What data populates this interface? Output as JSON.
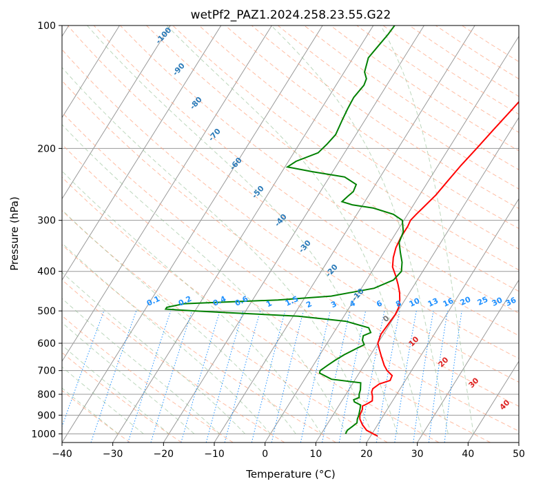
{
  "chart_data": {
    "type": "skew-t log-p sounding",
    "title": "wetPf2_PAZ1.2024.258.23.55.G22",
    "xlabel": "Temperature (°C)",
    "ylabel": "Pressure (hPa)",
    "xlim": [
      -40,
      50
    ],
    "ylim": [
      1050,
      100
    ],
    "x_ticks": [
      -40,
      -30,
      -20,
      -10,
      0,
      10,
      20,
      30,
      40,
      50
    ],
    "y_ticks": [
      1000,
      900,
      800,
      700,
      600,
      500,
      400,
      300,
      200,
      100
    ],
    "grid": true,
    "series": [
      {
        "color": "#ff0000",
        "points": [
          [
            1013,
            21.4
          ],
          [
            980,
            18.5
          ],
          [
            950,
            17.0
          ],
          [
            920,
            15.8
          ],
          [
            900,
            15.3
          ],
          [
            870,
            15.1
          ],
          [
            855,
            14.7
          ],
          [
            845,
            15.3
          ],
          [
            830,
            16.0
          ],
          [
            810,
            15.5
          ],
          [
            790,
            14.8
          ],
          [
            775,
            14.6
          ],
          [
            755,
            15.3
          ],
          [
            740,
            17.0
          ],
          [
            720,
            16.8
          ],
          [
            700,
            15.2
          ],
          [
            680,
            14.0
          ],
          [
            650,
            12.5
          ],
          [
            620,
            11.0
          ],
          [
            600,
            10.0
          ],
          [
            570,
            9.5
          ],
          [
            540,
            9.7
          ],
          [
            510,
            9.9
          ],
          [
            490,
            9.7
          ],
          [
            470,
            9.0
          ],
          [
            450,
            8.0
          ],
          [
            430,
            6.7
          ],
          [
            410,
            5.2
          ],
          [
            390,
            3.5
          ],
          [
            370,
            2.5
          ],
          [
            350,
            1.8
          ],
          [
            330,
            1.5
          ],
          [
            310,
            1.5
          ],
          [
            300,
            1.3
          ],
          [
            290,
            1.7
          ],
          [
            280,
            2.2
          ],
          [
            260,
            3.2
          ],
          [
            240,
            3.8
          ],
          [
            220,
            4.5
          ],
          [
            200,
            5.5
          ],
          [
            180,
            6.5
          ],
          [
            160,
            7.7
          ],
          [
            140,
            9.0
          ],
          [
            125,
            10.5
          ],
          [
            115,
            11.7
          ],
          [
            108,
            12.5
          ],
          [
            102,
            13.1
          ],
          [
            100,
            13.2
          ]
        ]
      },
      {
        "color": "#008000",
        "points": [
          [
            1000,
            14.8
          ],
          [
            980,
            14.7
          ],
          [
            960,
            15.2
          ],
          [
            940,
            15.7
          ],
          [
            920,
            15.3
          ],
          [
            900,
            15.1
          ],
          [
            870,
            14.6
          ],
          [
            850,
            14.2
          ],
          [
            835,
            12.6
          ],
          [
            825,
            12.2
          ],
          [
            815,
            13.0
          ],
          [
            800,
            12.6
          ],
          [
            780,
            12.3
          ],
          [
            750,
            11.5
          ],
          [
            735,
            5.3
          ],
          [
            710,
            2.2
          ],
          [
            700,
            2.0
          ],
          [
            680,
            2.8
          ],
          [
            660,
            3.7
          ],
          [
            640,
            4.8
          ],
          [
            620,
            6.3
          ],
          [
            605,
            7.5
          ],
          [
            590,
            6.6
          ],
          [
            575,
            6.2
          ],
          [
            565,
            7.3
          ],
          [
            550,
            6.3
          ],
          [
            530,
            1.0
          ],
          [
            515,
            -9.0
          ],
          [
            505,
            -23.0
          ],
          [
            500,
            -30.0
          ],
          [
            495,
            -36.0
          ],
          [
            490,
            -36.0
          ],
          [
            480,
            -33.0
          ],
          [
            470,
            -15.0
          ],
          [
            460,
            -5.0
          ],
          [
            440,
            2.5
          ],
          [
            420,
            5.3
          ],
          [
            400,
            5.8
          ],
          [
            380,
            4.8
          ],
          [
            360,
            3.3
          ],
          [
            340,
            1.8
          ],
          [
            320,
            1.3
          ],
          [
            300,
            -0.3
          ],
          [
            290,
            -2.8
          ],
          [
            280,
            -7.5
          ],
          [
            275,
            -12.0
          ],
          [
            270,
            -14.5
          ],
          [
            262,
            -14.0
          ],
          [
            255,
            -13.5
          ],
          [
            245,
            -13.8
          ],
          [
            235,
            -17.0
          ],
          [
            228,
            -24.0
          ],
          [
            222,
            -29.5
          ],
          [
            215,
            -28.5
          ],
          [
            205,
            -25.2
          ],
          [
            195,
            -24.5
          ],
          [
            185,
            -24.0
          ],
          [
            170,
            -24.5
          ],
          [
            160,
            -24.8
          ],
          [
            150,
            -25.0
          ],
          [
            140,
            -24.5
          ],
          [
            135,
            -24.8
          ],
          [
            130,
            -26.0
          ],
          [
            120,
            -27.0
          ],
          [
            112,
            -26.5
          ],
          [
            105,
            -26.0
          ],
          [
            100,
            -25.8
          ]
        ]
      }
    ],
    "dry_adiabat_labels": [
      "-100",
      "-90",
      "-80",
      "-70",
      "-60",
      "-50",
      "-40",
      "-30",
      "-20",
      "-10"
    ],
    "mixing_ratio_labels": [
      "0.1",
      "0.2",
      "0.4",
      "0.6",
      "1",
      "1.5",
      "2",
      "3",
      "4",
      "6",
      "8",
      "10",
      "13",
      "16",
      "20",
      "25",
      "30",
      "36"
    ],
    "moist_adiabat_labels": [
      "0",
      "10",
      "20",
      "30",
      "40"
    ],
    "colors": {
      "temperature": "#ff0000",
      "dewpoint": "#008000",
      "isotherm_grid": "#999999",
      "dry_adiabat": "#ffa07a",
      "moist_adiabat": "#8fbc8f",
      "mixing_ratio": "#1e90ff",
      "dry_adiabat_label": "#2a7ab8",
      "mixing_ratio_label": "#1e90ff",
      "moist_adiabat_label": "#dd2222",
      "zero_label": "#777777"
    }
  }
}
